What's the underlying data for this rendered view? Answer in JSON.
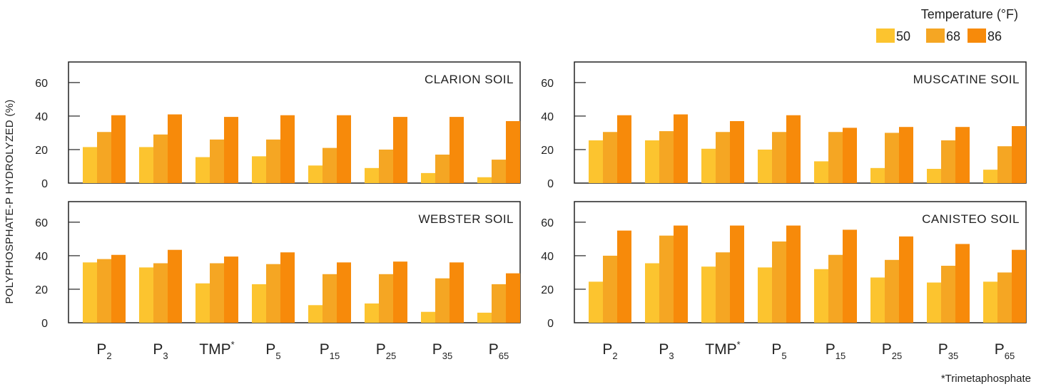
{
  "legend": {
    "title": "Temperature (°F)",
    "items": [
      {
        "label": "50",
        "color": "#fcc42f"
      },
      {
        "label": "68",
        "color": "#f5a623"
      },
      {
        "label": "86",
        "color": "#f78a0a"
      }
    ]
  },
  "y_axis_label": "POLYPHOSPHATE-P HYDROLYZED (%)",
  "footnote": "*Trimetaphosphate",
  "categories": [
    {
      "base": "P",
      "sub": "2",
      "sup": ""
    },
    {
      "base": "P",
      "sub": "3",
      "sup": ""
    },
    {
      "base": "TMP",
      "sub": "",
      "sup": "*"
    },
    {
      "base": "P",
      "sub": "5",
      "sup": ""
    },
    {
      "base": "P",
      "sub": "15",
      "sup": ""
    },
    {
      "base": "P",
      "sub": "25",
      "sup": ""
    },
    {
      "base": "P",
      "sub": "35",
      "sup": ""
    },
    {
      "base": "P",
      "sub": "65",
      "sup": ""
    }
  ],
  "chart_data": [
    {
      "type": "bar",
      "title": "CLARION SOIL",
      "categories": [
        "P2",
        "P3",
        "TMP*",
        "P5",
        "P15",
        "P25",
        "P35",
        "P65"
      ],
      "series": [
        {
          "name": "50",
          "values": [
            21.5,
            21.5,
            15.5,
            16,
            10.5,
            9,
            6,
            3.5
          ]
        },
        {
          "name": "68",
          "values": [
            30.5,
            29,
            26,
            26,
            21,
            20,
            17,
            14
          ]
        },
        {
          "name": "86",
          "values": [
            40.5,
            41,
            39.5,
            40.5,
            40.5,
            39.5,
            39.5,
            37
          ]
        }
      ],
      "yticks": [
        0,
        20,
        40,
        60
      ],
      "ylim": [
        0,
        71
      ]
    },
    {
      "type": "bar",
      "title": "MUSCATINE SOIL",
      "categories": [
        "P2",
        "P3",
        "TMP*",
        "P5",
        "P15",
        "P25",
        "P35",
        "P65"
      ],
      "series": [
        {
          "name": "50",
          "values": [
            25.5,
            25.5,
            20.5,
            20,
            13,
            9,
            8.5,
            8
          ]
        },
        {
          "name": "68",
          "values": [
            30.5,
            31,
            30.5,
            30.5,
            30.5,
            30,
            25.5,
            22
          ]
        },
        {
          "name": "86",
          "values": [
            40.5,
            41,
            37,
            40.5,
            33,
            33.5,
            33.5,
            34
          ]
        }
      ],
      "yticks": [
        0,
        20,
        40,
        60
      ],
      "ylim": [
        0,
        71
      ]
    },
    {
      "type": "bar",
      "title": "WEBSTER SOIL",
      "categories": [
        "P2",
        "P3",
        "TMP*",
        "P5",
        "P15",
        "P25",
        "P35",
        "P65"
      ],
      "series": [
        {
          "name": "50",
          "values": [
            36,
            33,
            23.5,
            23,
            10.5,
            11.5,
            6.5,
            6
          ]
        },
        {
          "name": "68",
          "values": [
            38,
            35.5,
            35.5,
            35,
            29,
            29,
            26.5,
            23
          ]
        },
        {
          "name": "86",
          "values": [
            40.5,
            43.5,
            39.5,
            42,
            36,
            36.5,
            36,
            29.5
          ]
        }
      ],
      "yticks": [
        0,
        20,
        40,
        60
      ],
      "ylim": [
        0,
        71
      ]
    },
    {
      "type": "bar",
      "title": "CANISTEO SOIL",
      "categories": [
        "P2",
        "P3",
        "TMP*",
        "P5",
        "P15",
        "P25",
        "P35",
        "P65"
      ],
      "series": [
        {
          "name": "50",
          "values": [
            24.5,
            35.5,
            33.5,
            33,
            32,
            27,
            24,
            24.5
          ]
        },
        {
          "name": "68",
          "values": [
            40,
            52,
            42,
            48.5,
            40.5,
            37.5,
            34,
            30
          ]
        },
        {
          "name": "86",
          "values": [
            55,
            58,
            58,
            58,
            55.5,
            51.5,
            47,
            43.5
          ]
        }
      ],
      "yticks": [
        0,
        20,
        40,
        60
      ],
      "ylim": [
        0,
        71
      ]
    }
  ]
}
